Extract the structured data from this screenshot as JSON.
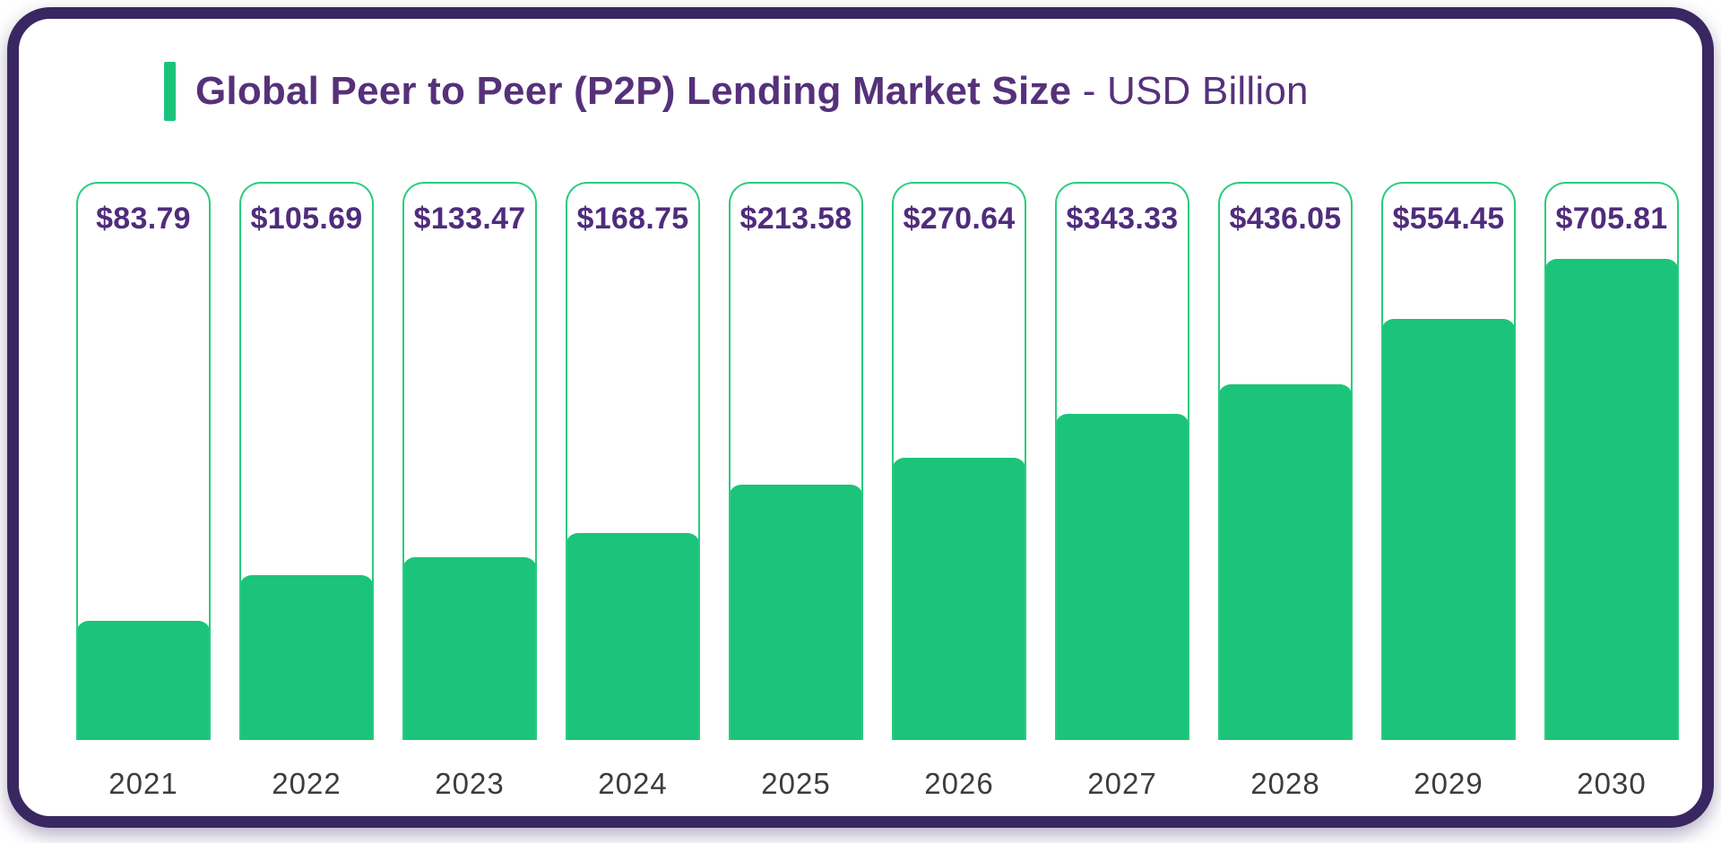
{
  "header": {
    "title_bold": "Global Peer to Peer (P2P) Lending Market Size",
    "title_suffix": " - USD Billion"
  },
  "chart_data": {
    "type": "bar",
    "title": "Global Peer to Peer (P2P) Lending Market Size",
    "subtitle_unit": "USD Billion",
    "categories": [
      "2021",
      "2022",
      "2023",
      "2024",
      "2025",
      "2026",
      "2027",
      "2028",
      "2029",
      "2030"
    ],
    "values": [
      83.79,
      105.69,
      133.47,
      168.75,
      213.58,
      270.64,
      343.33,
      436.05,
      554.45,
      705.81
    ],
    "value_labels": [
      "$83.79",
      "$105.69",
      "$133.47",
      "$168.75",
      "$213.58",
      "$270.64",
      "$343.33",
      "$436.05",
      "$554.45",
      "$705.81"
    ],
    "bar_fill_pct": [
      21.3,
      29.5,
      32.7,
      37.1,
      45.7,
      50.6,
      58.4,
      63.7,
      75.4,
      86.2
    ],
    "xlabel": "",
    "ylabel": "",
    "grid": false,
    "legend": false,
    "orientation": "vertical",
    "value_label_position": "inside-top",
    "category_label_position": "below-bar"
  },
  "colors": {
    "bar_fill_green": "#1bc47a",
    "bar_border_green": "#29cc7e",
    "title_purple": "#56317a",
    "value_purple": "#4f2c7c",
    "frame_purple": "#392761",
    "year_label_gray": "#3c3c3c",
    "card_background": "#ffffff"
  }
}
